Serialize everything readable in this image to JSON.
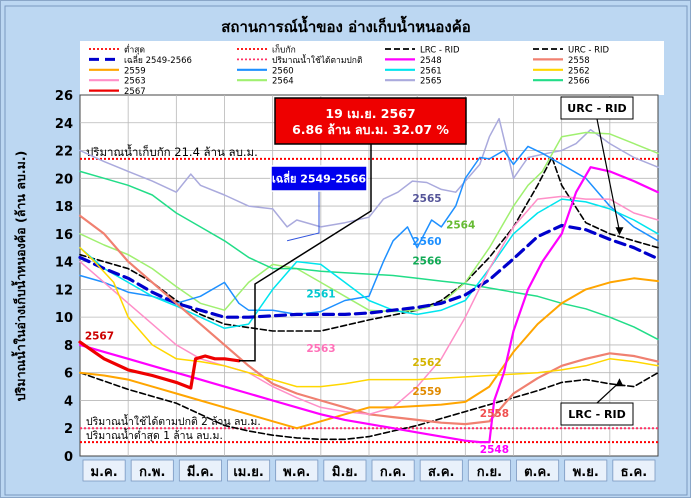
{
  "chart_data": {
    "type": "line",
    "title": "สถานการณ์น้ำของ อ่างเก็บน้ำหนองค้อ",
    "ylabel": "ปริมาณน้ำในอ่างเก็บน้ำหนองค้อ (ล้าน ลบ.ม.)",
    "xlabel": "",
    "ylim": [
      0,
      26
    ],
    "yticks": [
      0,
      2,
      4,
      6,
      8,
      10,
      12,
      14,
      16,
      18,
      20,
      22,
      24,
      26
    ],
    "xlim": [
      0,
      12
    ],
    "months": [
      "ม.ค.",
      "ก.พ.",
      "มี.ค.",
      "เม.ย.",
      "พ.ค.",
      "มิ.ย.",
      "ก.ค.",
      "ส.ค.",
      "ก.ย.",
      "ต.ค.",
      "พ.ย.",
      "ธ.ค."
    ],
    "legend": [
      {
        "label": "ต่ำสุด",
        "color": "#ff0000",
        "style": "dotted"
      },
      {
        "label": "เก็บกัก",
        "color": "#ff0000",
        "style": "dotted"
      },
      {
        "label": "LRC - RID",
        "color": "#000000",
        "style": "dashed"
      },
      {
        "label": "URC - RID",
        "color": "#000000",
        "style": "dashed"
      },
      {
        "label": "เฉลี่ย 2549-2566",
        "color": "#0000cc",
        "style": "dashbold"
      },
      {
        "label": "ปริมาณน้ำใช้ได้ตามปกติ",
        "color": "#ff3366",
        "style": "dotted"
      },
      {
        "label": "2548",
        "color": "#ff00ff",
        "style": "solid"
      },
      {
        "label": "2558",
        "color": "#f08070",
        "style": "solid"
      },
      {
        "label": "2559",
        "color": "#ffa500",
        "style": "solid"
      },
      {
        "label": "2560",
        "color": "#1e90ff",
        "style": "solid"
      },
      {
        "label": "2561",
        "color": "#00e5ee",
        "style": "solid"
      },
      {
        "label": "2562",
        "color": "#ffd700",
        "style": "solid"
      },
      {
        "label": "2563",
        "color": "#ff8fc8",
        "style": "solid"
      },
      {
        "label": "2564",
        "color": "#a0f070",
        "style": "solid"
      },
      {
        "label": "2565",
        "color": "#aaaadd",
        "style": "solid"
      },
      {
        "label": "2566",
        "color": "#22dd88",
        "style": "solid"
      },
      {
        "label": "2567",
        "color": "#ee0000",
        "style": "solid"
      }
    ],
    "reference_lines": [
      {
        "name": "เก็บกัก",
        "value": 21.4,
        "color": "#ff0000",
        "label": "ปริมาณน้ำเก็บกัก 21.4 ล้าน ลบ.ม."
      },
      {
        "name": "ปริมาณน้ำใช้ได้ตามปกติ",
        "value": 2.0,
        "color": "#ff3366",
        "label": "ปริมาณน้ำใช้ได้ตามปกติ 2 ล้าน ลบ.ม."
      },
      {
        "name": "ต่ำสุด",
        "value": 1.0,
        "color": "#ff0000",
        "label": "ปริมาณน้ำต่ำสุด 1 ล้าน ลบ.ม."
      }
    ],
    "series": [
      {
        "name": "URC - RID",
        "color": "#000000",
        "style": "dashed",
        "width": 1.6,
        "x": [
          0,
          1,
          1.5,
          2,
          2.5,
          3,
          4,
          5,
          6,
          7,
          7.5,
          8,
          8.5,
          9,
          9.5,
          9.8,
          10,
          10.5,
          11,
          11.5,
          12
        ],
        "y": [
          14.5,
          13.5,
          12.5,
          11.2,
          10.2,
          9.5,
          9,
          9,
          9.8,
          10.5,
          11.2,
          12.5,
          14.3,
          16.5,
          19.5,
          21.5,
          19.5,
          16.8,
          16.0,
          15.5,
          15.0
        ]
      },
      {
        "name": "LRC - RID",
        "color": "#000000",
        "style": "dashed",
        "width": 1.6,
        "x": [
          0,
          1,
          2,
          2.5,
          3,
          3.5,
          4,
          4.5,
          5,
          5.5,
          6,
          6.5,
          7,
          7.5,
          8,
          8.5,
          9,
          9.5,
          10,
          10.5,
          11,
          11.5,
          12
        ],
        "y": [
          6,
          4.8,
          3.8,
          3,
          2.2,
          1.8,
          1.5,
          1.3,
          1.2,
          1.2,
          1.4,
          1.8,
          2.2,
          2.7,
          3.2,
          3.7,
          4.2,
          4.7,
          5.3,
          5.5,
          5.2,
          5.0,
          6.0
        ]
      },
      {
        "name": "2565",
        "color": "#aaaadd",
        "width": 1.5,
        "x": [
          0,
          0.5,
          1,
          1.5,
          2,
          2.3,
          2.5,
          3,
          3.5,
          4,
          4.3,
          4.5,
          4.8,
          5,
          5.5,
          6,
          6.3,
          6.6,
          6.9,
          7.2,
          7.5,
          7.8,
          8,
          8.3,
          8.5,
          8.7,
          9,
          9.3,
          9.7,
          10,
          10.3,
          10.6,
          11,
          11.5,
          12
        ],
        "y": [
          22,
          21.2,
          20.5,
          19.8,
          19.0,
          20.3,
          19.5,
          18.8,
          18.0,
          17.8,
          16.5,
          17.0,
          16.7,
          16.5,
          16.8,
          17.2,
          18.5,
          19.0,
          19.8,
          19.7,
          19.2,
          19.0,
          19.8,
          21.0,
          23.0,
          24.3,
          20.0,
          21.5,
          21.8,
          22.0,
          22.5,
          23.5,
          22.5,
          21.5,
          20.8
        ]
      },
      {
        "name": "2564",
        "color": "#a0f070",
        "width": 1.5,
        "x": [
          0,
          0.5,
          1,
          1.5,
          2,
          2.5,
          3,
          3.5,
          4,
          4.5,
          5,
          5.5,
          6,
          6.5,
          7,
          7.5,
          8,
          8.5,
          9,
          9.3,
          9.6,
          10,
          10.5,
          11,
          11.5,
          12
        ],
        "y": [
          16,
          15.2,
          14.5,
          13.5,
          12.2,
          11.0,
          10.5,
          12.5,
          13.8,
          13.5,
          12.5,
          11.5,
          10.5,
          10.4,
          10.5,
          11.0,
          12.5,
          15.0,
          18.0,
          19.5,
          20.5,
          23.0,
          23.3,
          23.2,
          22.5,
          21.8
        ]
      },
      {
        "name": "2566",
        "color": "#22dd88",
        "width": 1.5,
        "x": [
          0,
          0.5,
          1,
          1.5,
          2,
          2.5,
          3,
          3.5,
          4,
          4.5,
          5,
          5.5,
          6,
          6.5,
          7,
          7.5,
          8,
          8.5,
          9,
          9.5,
          10,
          10.5,
          11,
          11.5,
          12
        ],
        "y": [
          20.5,
          20.0,
          19.5,
          18.8,
          17.5,
          16.5,
          15.5,
          14.3,
          13.5,
          13.5,
          13.3,
          13.2,
          13.1,
          13.0,
          12.8,
          12.6,
          12.4,
          12.1,
          11.8,
          11.5,
          11.0,
          10.6,
          10.0,
          9.3,
          8.4
        ]
      },
      {
        "name": "2560",
        "color": "#1e90ff",
        "width": 1.5,
        "x": [
          0,
          0.5,
          1,
          1.5,
          2,
          2.5,
          3,
          3.3,
          3.5,
          4,
          4.5,
          5,
          5.5,
          6,
          6.3,
          6.5,
          6.8,
          7,
          7.3,
          7.5,
          7.8,
          8,
          8.3,
          8.5,
          8.8,
          9,
          9.3,
          9.6,
          10,
          10.5,
          11,
          11.5,
          12
        ],
        "y": [
          13,
          12.5,
          11.8,
          11.5,
          11.0,
          11.5,
          12.5,
          11.0,
          10.5,
          10.5,
          10.2,
          10.4,
          11.2,
          11.5,
          14.0,
          15.5,
          16.5,
          15.0,
          17.0,
          16.5,
          18.0,
          20.0,
          21.5,
          21.4,
          22.0,
          21.0,
          22.3,
          21.8,
          21.0,
          20.0,
          18.0,
          16.5,
          15.5
        ]
      },
      {
        "name": "2561",
        "color": "#00e5ee",
        "width": 1.5,
        "x": [
          0,
          0.5,
          1,
          1.5,
          2,
          2.5,
          3,
          3.5,
          4,
          4.5,
          5,
          5.5,
          6,
          6.5,
          7,
          7.5,
          8,
          8.5,
          9,
          9.5,
          10,
          10.5,
          11,
          11.5,
          12
        ],
        "y": [
          15,
          13.5,
          12.5,
          11.5,
          10.8,
          10.0,
          9.2,
          9.5,
          12.0,
          14.0,
          13.8,
          12.5,
          11.2,
          10.5,
          10.2,
          10.5,
          11.2,
          13.5,
          16.0,
          17.5,
          18.5,
          18.3,
          17.8,
          17.0,
          16.0
        ]
      },
      {
        "name": "เฉลี่ย 2549-2566",
        "color": "#0000cc",
        "style": "dashbold",
        "width": 3.2,
        "x": [
          0,
          0.5,
          1,
          1.5,
          2,
          2.5,
          3,
          3.5,
          4,
          4.5,
          5,
          5.5,
          6,
          6.5,
          7,
          7.5,
          8,
          8.5,
          9,
          9.5,
          10,
          10.5,
          11,
          11.5,
          12
        ],
        "y": [
          14.3,
          13.5,
          12.8,
          11.8,
          11.0,
          10.5,
          10.0,
          10.0,
          10.1,
          10.2,
          10.2,
          10.2,
          10.3,
          10.5,
          10.7,
          11.0,
          11.6,
          12.7,
          14.2,
          15.8,
          16.6,
          16.3,
          15.6,
          15.0,
          14.2
        ]
      },
      {
        "name": "2558",
        "color": "#f08070",
        "width": 2.2,
        "x": [
          0,
          0.5,
          1,
          1.5,
          2,
          2.5,
          3,
          3.5,
          4,
          4.5,
          5,
          5.5,
          6,
          6.5,
          7,
          7.5,
          8,
          8.5,
          9,
          9.5,
          10,
          10.5,
          11,
          11.5,
          12
        ],
        "y": [
          17.3,
          16.0,
          14.0,
          12.5,
          11.0,
          9.5,
          8.0,
          6.5,
          5.2,
          4.5,
          4.0,
          3.5,
          3.0,
          2.8,
          2.6,
          2.4,
          2.3,
          2.5,
          4.5,
          5.6,
          6.5,
          7.0,
          7.4,
          7.2,
          6.8
        ]
      },
      {
        "name": "2563",
        "color": "#ff8fc8",
        "width": 1.5,
        "x": [
          0,
          0.5,
          1,
          1.5,
          2,
          2.5,
          3,
          3.5,
          4,
          4.5,
          5,
          5.5,
          6,
          6.5,
          7,
          7.5,
          8,
          8.5,
          9,
          9.5,
          10,
          10.5,
          11,
          11.5,
          12
        ],
        "y": [
          14.0,
          12.5,
          11.0,
          9.5,
          8.0,
          7.0,
          6.5,
          6.0,
          5.0,
          4.2,
          3.5,
          3.2,
          3.0,
          3.5,
          5.0,
          7.0,
          10.0,
          13.5,
          16.5,
          18.5,
          18.7,
          18.5,
          18.5,
          17.5,
          17.0
        ]
      },
      {
        "name": "2559",
        "color": "#ffa500",
        "width": 2.0,
        "x": [
          0,
          0.5,
          1,
          1.5,
          2,
          2.5,
          3,
          3.5,
          4,
          4.5,
          5,
          5.5,
          6,
          6.5,
          7,
          7.5,
          8,
          8.5,
          9,
          9.5,
          10,
          10.5,
          11,
          11.5,
          12
        ],
        "y": [
          6.0,
          5.8,
          5.5,
          5.0,
          4.5,
          4.0,
          3.5,
          3.0,
          2.5,
          2.0,
          2.5,
          3.0,
          3.5,
          3.5,
          3.6,
          3.7,
          3.9,
          5.0,
          7.5,
          9.5,
          11.0,
          12.0,
          12.5,
          12.8,
          12.6
        ]
      },
      {
        "name": "2562",
        "color": "#ffd700",
        "width": 1.5,
        "x": [
          0,
          0.3,
          0.7,
          1,
          1.5,
          2,
          2.5,
          3,
          3.5,
          4,
          4.5,
          5,
          5.5,
          6,
          6.5,
          7,
          7.5,
          8,
          8.5,
          9,
          9.5,
          10,
          10.5,
          11,
          11.5,
          12
        ],
        "y": [
          15.0,
          14.0,
          12.5,
          10.0,
          8.0,
          7.0,
          6.8,
          6.5,
          6.0,
          5.5,
          5.0,
          5.0,
          5.2,
          5.5,
          5.5,
          5.5,
          5.6,
          5.7,
          5.8,
          5.9,
          6.0,
          6.2,
          6.5,
          7.0,
          6.8,
          6.5
        ]
      },
      {
        "name": "2548",
        "color": "#ff00ff",
        "width": 2.2,
        "x": [
          0,
          0.5,
          1,
          1.5,
          2,
          2.5,
          3,
          3.5,
          4,
          4.5,
          5,
          5.5,
          6,
          6.5,
          7,
          7.5,
          8,
          8.3,
          8.5,
          8.6,
          8.8,
          9,
          9.3,
          9.6,
          10,
          10.3,
          10.6,
          11,
          11.5,
          12
        ],
        "y": [
          8.0,
          7.5,
          7.0,
          6.5,
          6.0,
          5.5,
          5.0,
          4.5,
          4.0,
          3.5,
          3.0,
          2.6,
          2.3,
          2.0,
          1.7,
          1.4,
          1.1,
          1.0,
          1.0,
          4.0,
          6.0,
          9.0,
          12.0,
          14.0,
          16.0,
          19.0,
          20.8,
          20.5,
          19.8,
          19.0
        ]
      },
      {
        "name": "2567",
        "color": "#ee0000",
        "width": 3.2,
        "x": [
          0,
          0.5,
          1,
          1.5,
          2,
          2.3,
          2.4,
          2.6,
          2.8,
          3.0,
          3.3
        ],
        "y": [
          8.2,
          7.0,
          6.2,
          5.8,
          5.3,
          4.9,
          7.0,
          7.2,
          7.0,
          7.0,
          6.86
        ]
      }
    ],
    "series_labels": [
      {
        "text": "2567",
        "x": 0.1,
        "y": 8.4,
        "color": "#cc0000"
      },
      {
        "text": "2565",
        "x": 6.9,
        "y": 18.3,
        "color": "#555599"
      },
      {
        "text": "2564",
        "x": 7.6,
        "y": 16.4,
        "color": "#66bb33"
      },
      {
        "text": "2560",
        "x": 6.9,
        "y": 15.2,
        "color": "#1e90ff"
      },
      {
        "text": "2566",
        "x": 6.9,
        "y": 13.8,
        "color": "#11aa55"
      },
      {
        "text": "2561",
        "x": 4.7,
        "y": 11.4,
        "color": "#00c8d0"
      },
      {
        "text": "2563",
        "x": 4.7,
        "y": 7.5,
        "color": "#ff70b8"
      },
      {
        "text": "2562",
        "x": 6.9,
        "y": 6.5,
        "color": "#d4b400"
      },
      {
        "text": "2559",
        "x": 6.9,
        "y": 4.4,
        "color": "#e08a00"
      },
      {
        "text": "2558",
        "x": 8.3,
        "y": 2.8,
        "color": "#f05050"
      },
      {
        "text": "2548",
        "x": 8.3,
        "y": 0.2,
        "color": "#ff00ff"
      }
    ],
    "callouts": [
      {
        "lines": [
          "19 เม.ย. 2567",
          "6.86 ล้าน ลบ.ม. 32.07 %"
        ],
        "bg": "#ee0000",
        "fg": "#ffffff",
        "target_x": 3.3,
        "target_y": 6.86
      },
      {
        "lines": [
          "เฉลี่ย 2549-2566"
        ],
        "bg": "#0000ee",
        "fg": "#ffffff",
        "target_x": 4.3,
        "target_y": 15.5
      },
      {
        "lines": [
          "URC - RID"
        ],
        "bg": "#ffffff",
        "fg": "#000000",
        "target_x": 11.2,
        "target_y": 15.9
      },
      {
        "lines": [
          "LRC - RID"
        ],
        "bg": "#ffffff",
        "fg": "#000000",
        "target_x": 11.2,
        "target_y": 5.6
      }
    ]
  }
}
